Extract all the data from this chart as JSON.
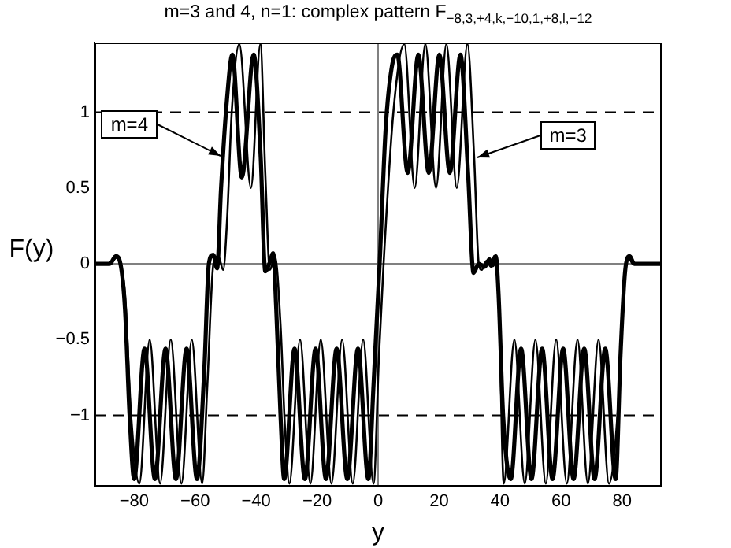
{
  "chart_data": {
    "type": "line",
    "title": "m=3 and 4, n=1: complex pattern F$_{−8,3,+4,k,−10,1,+8,l,−12}$",
    "xlabel": "y",
    "ylabel": "F(y)",
    "xlim": [
      -93,
      93
    ],
    "ylim": [
      -1.47,
      1.46
    ],
    "xticks": [
      -80,
      -60,
      -40,
      -20,
      0,
      20,
      40,
      60,
      80
    ],
    "yticks": [
      -1,
      -0.5,
      0,
      0.5,
      1
    ],
    "grid": false,
    "legend": false,
    "marker": "none",
    "line_style": "solid",
    "ref_lines": [
      {
        "axis": "y",
        "value": 1,
        "color": "#000000",
        "line_style": "dashed"
      },
      {
        "axis": "y",
        "value": -1,
        "color": "#000000",
        "line_style": "dashed"
      },
      {
        "axis": "y",
        "value": 0,
        "color": "#808080",
        "line_style": "solid"
      },
      {
        "axis": "x",
        "value": 0,
        "color": "#808080",
        "line_style": "solid"
      }
    ],
    "annotations": [
      {
        "text": "m=4",
        "x": -51.5,
        "y": 0.71
      },
      {
        "text": "m=3",
        "x": 32.4,
        "y": 0.7
      }
    ],
    "series": [
      {
        "color": "#000000",
        "x": [
          -93,
          -88,
          -86,
          -84.5,
          -83,
          -81.5,
          -80,
          -76.6,
          -73.2,
          -69.7,
          -66.3,
          -62.8,
          -59.4,
          -57,
          -55.5,
          -54.1,
          -52.8,
          -51.5,
          -49.5,
          -47.8,
          -44.7,
          -40.8,
          -38.5,
          -37,
          -35.7,
          -34.4,
          -33.4,
          -32,
          -30.8,
          -27.4,
          -24,
          -20.5,
          -17.1,
          -13.6,
          -10.1,
          -6.6,
          -3.2,
          -1.5,
          0.5,
          2.5,
          4.5,
          6.3,
          9.7,
          13.2,
          16.6,
          20.1,
          23.5,
          27,
          29.5,
          31.3,
          33,
          35,
          36.5,
          37.5,
          38.6,
          39.5,
          41,
          43.5,
          46.9,
          50.3,
          53.8,
          57.2,
          60.7,
          64.1,
          67.6,
          71,
          74.5,
          77.9,
          79.5,
          81,
          82.5,
          84,
          93
        ],
        "values": [
          0,
          0,
          0.05,
          0,
          -0.3,
          -1.0,
          -1.42,
          -0.56,
          -1.42,
          -0.56,
          -1.42,
          -0.56,
          -1.42,
          -0.7,
          0,
          0.06,
          -0.03,
          0.5,
          1.1,
          1.38,
          0.57,
          1.38,
          0.7,
          -0.05,
          0,
          0.07,
          -0.3,
          -1.0,
          -1.42,
          -0.56,
          -1.42,
          -0.56,
          -1.42,
          -0.56,
          -1.42,
          -0.56,
          -1.42,
          -0.8,
          0,
          0.9,
          1.3,
          1.38,
          0.6,
          1.38,
          0.6,
          1.38,
          0.6,
          1.38,
          0.6,
          -0.06,
          0,
          -0.02,
          0.03,
          -0.01,
          0.05,
          -0.2,
          -1.0,
          -1.42,
          -0.56,
          -1.42,
          -0.56,
          -1.42,
          -0.56,
          -1.42,
          -0.56,
          -1.42,
          -0.56,
          -1.42,
          -0.6,
          -0.05,
          0.05,
          0,
          0
        ]
      },
      {
        "color": "#000000",
        "x": [
          -93,
          -88,
          -85.8,
          -84.5,
          -83,
          -81,
          -78.3,
          -74.9,
          -71.5,
          -68,
          -64.5,
          -61.1,
          -57.7,
          -56,
          -54,
          -52.4,
          -50.8,
          -49.5,
          -48,
          -45.5,
          -41.7,
          -38.6,
          -37,
          -35.5,
          -33.8,
          -32,
          -30.5,
          -29.1,
          -25.6,
          -22.2,
          -18.8,
          -15.3,
          -11.8,
          -8.3,
          -4.9,
          -1.5,
          0.3,
          1.8,
          5,
          8.6,
          12,
          15.5,
          19,
          22.4,
          25.8,
          29.3,
          31.5,
          33,
          34,
          35.5,
          37,
          38,
          39.2,
          40,
          41.2,
          44.7,
          48.1,
          51.6,
          55,
          58.4,
          61.9,
          65.4,
          68.8,
          72.3,
          75.7,
          78.5,
          80.5,
          82,
          83.5,
          93
        ],
        "values": [
          0,
          0,
          0.04,
          0,
          -0.2,
          -1.0,
          -1.45,
          -0.5,
          -1.45,
          -0.5,
          -1.45,
          -0.5,
          -1.45,
          -0.8,
          0,
          0.05,
          -0.04,
          0.3,
          1.0,
          1.45,
          0.5,
          1.45,
          0.6,
          -0.04,
          0.05,
          -0.4,
          -1.1,
          -1.45,
          -0.5,
          -1.45,
          -0.5,
          -1.45,
          -0.5,
          -1.45,
          -0.5,
          -1.45,
          -0.6,
          0,
          1.0,
          1.45,
          0.5,
          1.45,
          0.5,
          1.45,
          0.5,
          1.45,
          0.7,
          0,
          -0.04,
          0.02,
          -0.02,
          0.05,
          0,
          -0.6,
          -1.45,
          -0.5,
          -1.45,
          -0.5,
          -1.45,
          -0.5,
          -1.45,
          -0.5,
          -1.45,
          -0.5,
          -1.45,
          -1.0,
          -0.2,
          0.05,
          0,
          0
        ]
      }
    ]
  }
}
